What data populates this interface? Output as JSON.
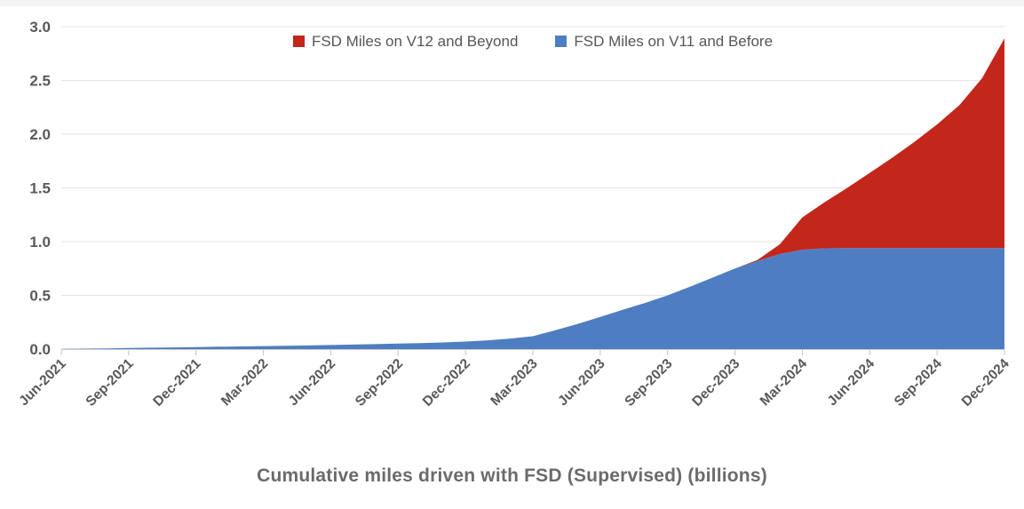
{
  "title": "Cumulative miles driven with FSD (Supervised) (billions)",
  "legend": [
    {
      "label": "FSD Miles on V12 and Beyond",
      "color": "#C3261B",
      "swatch_icon": "red-square-icon"
    },
    {
      "label": "FSD Miles on V11 and Before",
      "color": "#4E7EC1",
      "swatch_icon": "blue-square-icon"
    }
  ],
  "colors": {
    "v12_red": "#C3261B",
    "v11_blue": "#4E7EC1",
    "gridline": "#e4e4e4",
    "axis_line": "#cccccc",
    "tick_mark": "#c4c4c4",
    "axis_label_text": "#595959",
    "title_text": "#6b6b6b",
    "legend_text": "#565656",
    "background": "#ffffff"
  },
  "chart_data": {
    "type": "area",
    "stacked": true,
    "title": "Cumulative miles driven with FSD (Supervised) (billions)",
    "xlabel": "",
    "ylabel": "",
    "ylim": [
      0,
      3.0
    ],
    "y_ticks": [
      0.0,
      0.5,
      1.0,
      1.5,
      2.0,
      2.5,
      3.0
    ],
    "y_tick_labels": [
      "0.0",
      "0.5",
      "1.0",
      "1.5",
      "2.0",
      "2.5",
      "3.0"
    ],
    "grid": "horizontal",
    "legend_position": "top-center",
    "x_tick_every": 3,
    "x_tick_labels": [
      "Jun-2021",
      "Sep-2021",
      "Dec-2021",
      "Mar-2022",
      "Jun-2022",
      "Sep-2022",
      "Dec-2022",
      "Mar-2023",
      "Jun-2023",
      "Sep-2023",
      "Dec-2023",
      "Mar-2024",
      "Jun-2024",
      "Sep-2024",
      "Dec-2024"
    ],
    "x": [
      "Jun-2021",
      "Jul-2021",
      "Aug-2021",
      "Sep-2021",
      "Oct-2021",
      "Nov-2021",
      "Dec-2021",
      "Jan-2022",
      "Feb-2022",
      "Mar-2022",
      "Apr-2022",
      "May-2022",
      "Jun-2022",
      "Jul-2022",
      "Aug-2022",
      "Sep-2022",
      "Oct-2022",
      "Nov-2022",
      "Dec-2022",
      "Jan-2023",
      "Feb-2023",
      "Mar-2023",
      "Apr-2023",
      "May-2023",
      "Jun-2023",
      "Jul-2023",
      "Aug-2023",
      "Sep-2023",
      "Oct-2023",
      "Nov-2023",
      "Dec-2023",
      "Jan-2024",
      "Feb-2024",
      "Mar-2024",
      "Apr-2024",
      "May-2024",
      "Jun-2024",
      "Jul-2024",
      "Aug-2024",
      "Sep-2024",
      "Oct-2024",
      "Nov-2024",
      "Dec-2024"
    ],
    "series": [
      {
        "name": "FSD Miles on V11 and Before",
        "color": "#4E7EC1",
        "values": [
          0.002,
          0.004,
          0.007,
          0.01,
          0.013,
          0.016,
          0.019,
          0.022,
          0.025,
          0.028,
          0.031,
          0.034,
          0.038,
          0.042,
          0.046,
          0.051,
          0.056,
          0.062,
          0.07,
          0.082,
          0.098,
          0.12,
          0.175,
          0.235,
          0.3,
          0.365,
          0.43,
          0.5,
          0.58,
          0.665,
          0.75,
          0.82,
          0.885,
          0.925,
          0.938,
          0.94,
          0.94,
          0.94,
          0.94,
          0.94,
          0.94,
          0.94,
          0.94
        ]
      },
      {
        "name": "FSD Miles on V12 and Beyond",
        "color": "#C3261B",
        "values": [
          0,
          0,
          0,
          0,
          0,
          0,
          0,
          0,
          0,
          0,
          0,
          0,
          0,
          0,
          0,
          0,
          0,
          0,
          0,
          0,
          0,
          0,
          0,
          0,
          0,
          0,
          0,
          0,
          0,
          0,
          0,
          0.01,
          0.09,
          0.3,
          0.43,
          0.56,
          0.7,
          0.84,
          0.99,
          1.15,
          1.33,
          1.58,
          1.95
        ]
      }
    ],
    "quarterly_totals_billions": {
      "Jun-2021": 0.0,
      "Sep-2021": 0.01,
      "Dec-2021": 0.02,
      "Mar-2022": 0.03,
      "Jun-2022": 0.04,
      "Sep-2022": 0.05,
      "Dec-2022": 0.07,
      "Mar-2023": 0.12,
      "Jun-2023": 0.3,
      "Sep-2023": 0.5,
      "Dec-2023": 0.75,
      "Mar-2024": 1.23,
      "Jun-2024": 1.64,
      "Sep-2024": 2.09,
      "Dec-2024": 2.89
    }
  }
}
